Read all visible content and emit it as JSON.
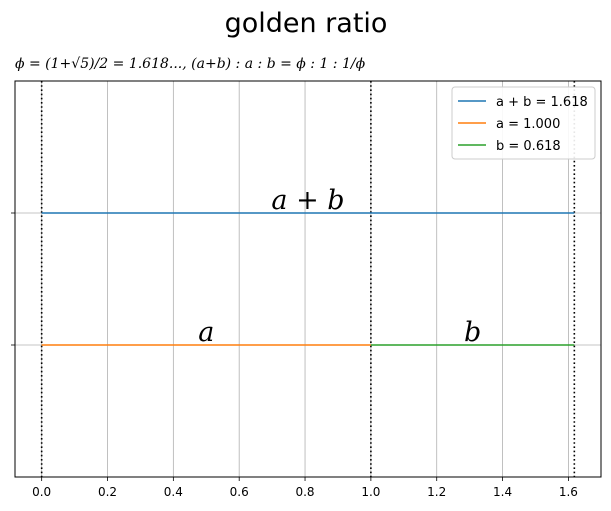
{
  "chart_data": {
    "type": "line",
    "title": "golden ratio",
    "subtitle": "ϕ = (1+√5)/2 = 1.618..., (a+b) : a : b = ϕ : 1 : 1/ϕ",
    "xlabel": "",
    "ylabel": "",
    "xlim": [
      -0.081,
      1.699
    ],
    "ylim": [
      0,
      3
    ],
    "x_ticks": [
      "0.0",
      "0.2",
      "0.4",
      "0.6",
      "0.8",
      "1.0",
      "1.2",
      "1.4",
      "1.6"
    ],
    "x_tick_values": [
      0.0,
      0.2,
      0.4,
      0.6,
      0.8,
      1.0,
      1.2,
      1.4,
      1.6
    ],
    "y_tick_values": [
      1,
      2
    ],
    "grid": true,
    "legend_position": "top-right",
    "series": [
      {
        "name": "a + b = 1.618",
        "color": "#1f77b4",
        "x": [
          0,
          1.618
        ],
        "y": [
          2,
          2
        ]
      },
      {
        "name": "a = 1.000",
        "color": "#ff7f0e",
        "x": [
          0,
          1.0
        ],
        "y": [
          1,
          1
        ]
      },
      {
        "name": "b = 0.618",
        "color": "#2ca02c",
        "x": [
          1.0,
          1.618
        ],
        "y": [
          1,
          1
        ]
      }
    ],
    "vertical_lines": [
      {
        "x": 0,
        "style": "dotted",
        "color": "#000000"
      },
      {
        "x": 1.0,
        "style": "dotted",
        "color": "#000000"
      },
      {
        "x": 1.618,
        "style": "dotted",
        "color": "#000000"
      }
    ],
    "annotations": [
      {
        "text": "a + b",
        "x": 0.809,
        "y": 2
      },
      {
        "text": "a",
        "x": 0.5,
        "y": 1
      },
      {
        "text": "b",
        "x": 1.309,
        "y": 1
      }
    ]
  }
}
